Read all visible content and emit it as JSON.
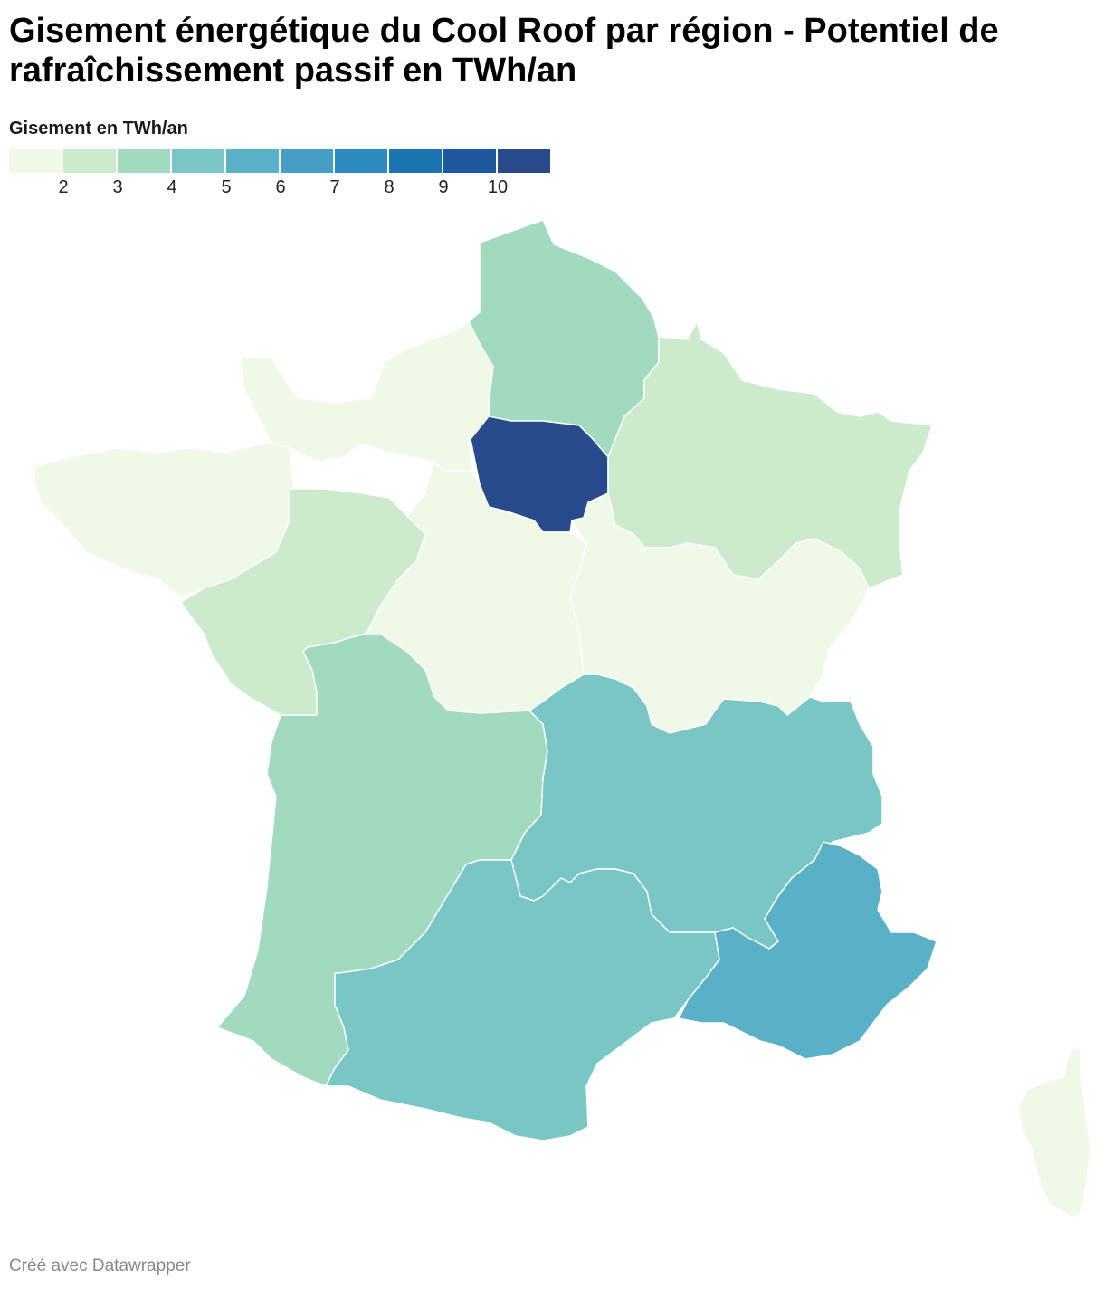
{
  "title": "Gisement énergétique du Cool Roof par région - Potentiel de rafraîchissement passif en TWh/an",
  "legend": {
    "title": "Gisement en TWh/an",
    "colors": [
      "#f0f9e8",
      "#ccebcc",
      "#a2dac0",
      "#78c6c5",
      "#59b1c7",
      "#449ec6",
      "#2c8abe",
      "#1a72b1",
      "#1d58a0",
      "#274b8b"
    ],
    "ticks": [
      "2",
      "3",
      "4",
      "5",
      "6",
      "7",
      "8",
      "9",
      "10"
    ]
  },
  "map": {
    "regions": [
      {
        "name": "Hauts-de-France",
        "bin": 2
      },
      {
        "name": "Normandie",
        "bin": 0
      },
      {
        "name": "Bretagne",
        "bin": 0
      },
      {
        "name": "Île-de-France",
        "bin": 9
      },
      {
        "name": "Grand Est",
        "bin": 1
      },
      {
        "name": "Pays de la Loire",
        "bin": 1
      },
      {
        "name": "Centre-Val de Loire",
        "bin": 0
      },
      {
        "name": "Bourgogne-Franche-Comté",
        "bin": 0
      },
      {
        "name": "Nouvelle-Aquitaine",
        "bin": 2
      },
      {
        "name": "Auvergne-Rhône-Alpes",
        "bin": 3
      },
      {
        "name": "Occitanie",
        "bin": 3
      },
      {
        "name": "Provence-Alpes-Côte d'Azur",
        "bin": 4
      },
      {
        "name": "Corse",
        "bin": 0
      }
    ]
  },
  "footer": "Créé avec Datawrapper"
}
